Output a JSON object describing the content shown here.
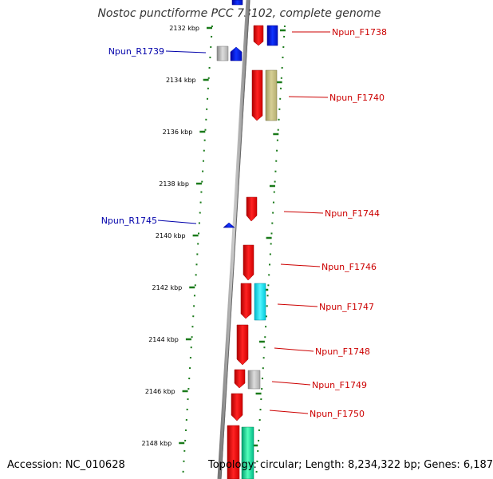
{
  "title": "Nostoc punctiforme PCC 73102, complete genome",
  "footer": {
    "accession": "Accession: NC_010628",
    "topology": "Topology: circular; Length: 8,234,322 bp; Genes: 6,187"
  },
  "ticks": [
    "2132 kbp",
    "2134 kbp",
    "2136 kbp",
    "2138 kbp",
    "2140 kbp",
    "2142 kbp",
    "2144 kbp",
    "2146 kbp",
    "2148 kbp"
  ],
  "genes_right": [
    {
      "name": "Npun_F1738",
      "color": "#cc0000"
    },
    {
      "name": "Npun_F1740",
      "color": "#cc0000"
    },
    {
      "name": "Npun_F1744",
      "color": "#cc0000"
    },
    {
      "name": "Npun_F1746",
      "color": "#cc0000"
    },
    {
      "name": "Npun_F1747",
      "color": "#cc0000"
    },
    {
      "name": "Npun_F1748",
      "color": "#cc0000"
    },
    {
      "name": "Npun_F1749",
      "color": "#cc0000"
    },
    {
      "name": "Npun_F1750",
      "color": "#cc0000"
    }
  ],
  "genes_left": [
    {
      "name": "Npun_R1739",
      "color": "#0000aa"
    },
    {
      "name": "Npun_R1745",
      "color": "#0000aa"
    }
  ],
  "colors": {
    "forward_gene": "#ee1111",
    "reverse_gene": "#0022ee",
    "backbone": "#999999",
    "tick": "#1a7a1a"
  }
}
